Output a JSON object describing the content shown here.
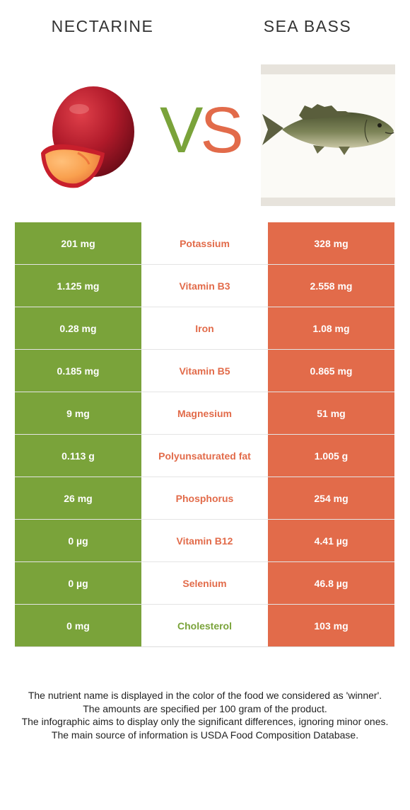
{
  "header": {
    "left_food": "NECTARINE",
    "right_food": "SEA BASS",
    "vs_v": "V",
    "vs_s": "S"
  },
  "colors": {
    "left_food": "#7aa33a",
    "right_food": "#e26b4a"
  },
  "images": {
    "left": "nectarine-illustration",
    "right": "sea-bass-illustration"
  },
  "nutrients": [
    {
      "name": "Potassium",
      "left": "201 mg",
      "right": "328 mg",
      "winner": "right"
    },
    {
      "name": "Vitamin B3",
      "left": "1.125 mg",
      "right": "2.558 mg",
      "winner": "right"
    },
    {
      "name": "Iron",
      "left": "0.28 mg",
      "right": "1.08 mg",
      "winner": "right"
    },
    {
      "name": "Vitamin B5",
      "left": "0.185 mg",
      "right": "0.865 mg",
      "winner": "right"
    },
    {
      "name": "Magnesium",
      "left": "9 mg",
      "right": "51 mg",
      "winner": "right"
    },
    {
      "name": "Polyunsaturated fat",
      "left": "0.113 g",
      "right": "1.005 g",
      "winner": "right"
    },
    {
      "name": "Phosphorus",
      "left": "26 mg",
      "right": "254 mg",
      "winner": "right"
    },
    {
      "name": "Vitamin B12",
      "left": "0 µg",
      "right": "4.41 µg",
      "winner": "right"
    },
    {
      "name": "Selenium",
      "left": "0 µg",
      "right": "46.8 µg",
      "winner": "right"
    },
    {
      "name": "Cholesterol",
      "left": "0 mg",
      "right": "103 mg",
      "winner": "left"
    }
  ],
  "footnotes": [
    "The nutrient name is displayed in the color of the food we considered as 'winner'.",
    "The amounts are specified per 100 gram of the product.",
    "The infographic aims to display only the significant differences, ignoring minor ones.",
    "The main source of information is USDA Food Composition Database."
  ]
}
